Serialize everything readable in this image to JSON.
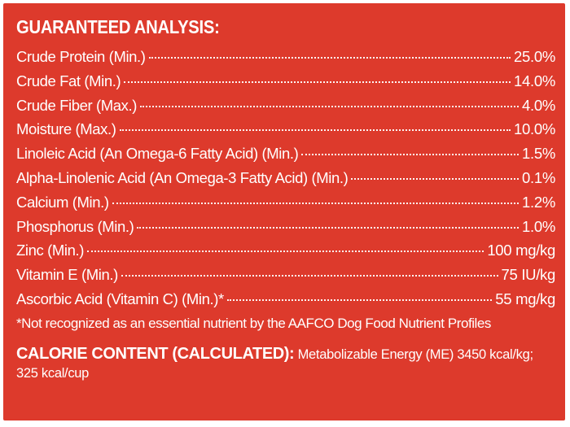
{
  "analysis": {
    "heading": "GUARANTEED ANALYSIS:",
    "rows": [
      {
        "name": "Crude Protein (Min.)",
        "value": "25.0%"
      },
      {
        "name": "Crude Fat (Min.)",
        "value": "14.0%"
      },
      {
        "name": "Crude Fiber (Max.)",
        "value": "4.0%"
      },
      {
        "name": "Moisture (Max.)",
        "value": "10.0%"
      },
      {
        "name": "Linoleic Acid (An Omega-6 Fatty Acid) (Min.)",
        "value": "1.5%"
      },
      {
        "name": "Alpha-Linolenic Acid (An Omega-3 Fatty Acid) (Min.)",
        "value": "0.1%"
      },
      {
        "name": "Calcium (Min.)",
        "value": "1.2%"
      },
      {
        "name": "Phosphorus (Min.)",
        "value": "1.0%"
      },
      {
        "name": "Zinc (Min.)",
        "value": "100 mg/kg"
      },
      {
        "name": "Vitamin E (Min.)",
        "value": "75 IU/kg"
      },
      {
        "name": "Ascorbic Acid (Vitamin C) (Min.)*",
        "value": "55 mg/kg"
      }
    ],
    "footnote": "*Not recognized as an essential nutrient by the AAFCO Dog Food Nutrient Profiles"
  },
  "calorie": {
    "heading": "CALORIE CONTENT (CALCULATED):",
    "text": " Metabolizable Energy (ME) 3450 kcal/kg; 325 kcal/cup"
  },
  "colors": {
    "background": "#dd3a2c",
    "text": "#ffffff"
  }
}
